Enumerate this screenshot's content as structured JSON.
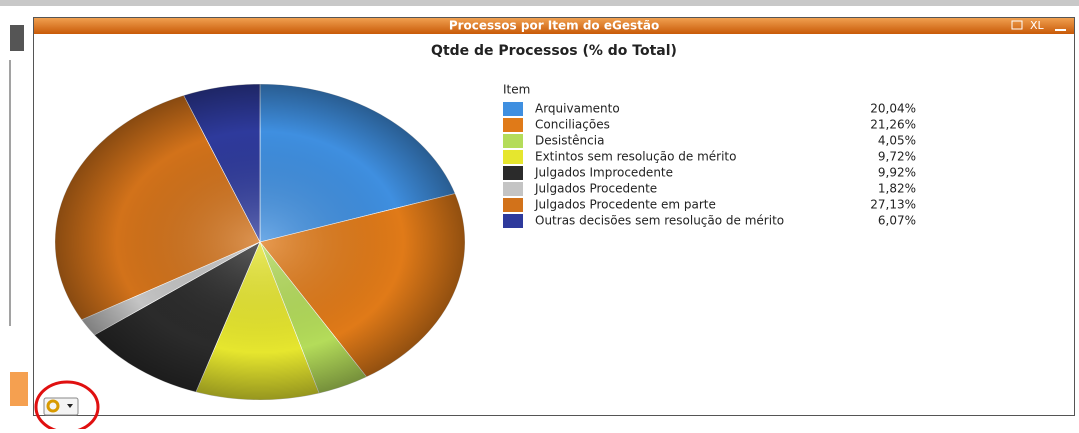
{
  "window_title": "Processos por Item do eGestão",
  "window_button": "XL",
  "chart_data": {
    "type": "pie",
    "title": "Qtde de Processos (% do Total)",
    "legend_title": "Item",
    "categories": [
      "Arquivamento",
      "Conciliações",
      "Desistência",
      "Extintos sem resolução de mérito",
      "Julgados Improcedente",
      "Julgados Procedente",
      "Julgados Procedente em parte",
      "Outras decisões sem resolução de mérito"
    ],
    "values": [
      20.04,
      21.26,
      4.05,
      9.72,
      9.92,
      1.82,
      27.13,
      6.07
    ],
    "value_labels": [
      "20,04%",
      "21,26%",
      "4,05%",
      "9,72%",
      "9,92%",
      "1,82%",
      "27,13%",
      "6,07%"
    ],
    "colors": [
      "#3f8fe0",
      "#e07a18",
      "#b4dc5a",
      "#e6e62e",
      "#2b2b2b",
      "#c4c4c4",
      "#d2721a",
      "#2e3a9c"
    ],
    "legend": "right"
  }
}
